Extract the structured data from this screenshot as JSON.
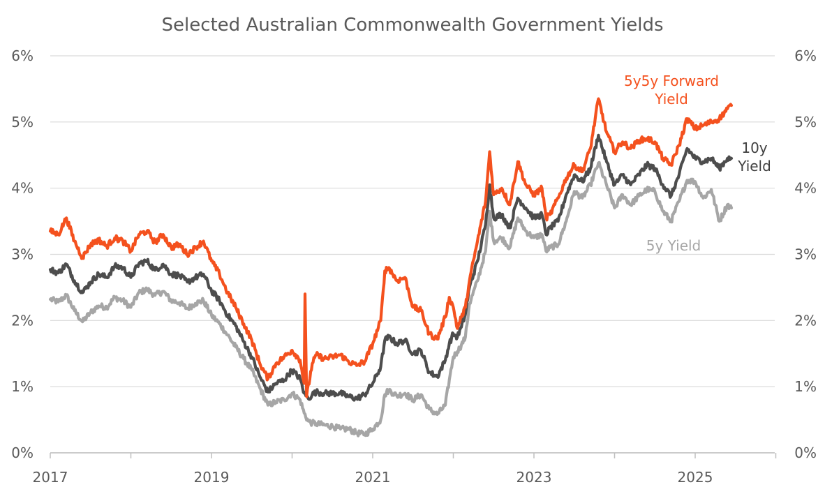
{
  "chart_data": {
    "type": "line",
    "title": "Selected Australian Commonwealth Government Yields",
    "xlabel": "",
    "ylabel": "",
    "x_ticks": [
      "2017",
      "2019",
      "2021",
      "2023",
      "2025"
    ],
    "y_ticks": [
      "0%",
      "1%",
      "2%",
      "3%",
      "4%",
      "5%",
      "6%"
    ],
    "x_range": [
      2017.0,
      2026.0
    ],
    "ylim": [
      0,
      6
    ],
    "grid": "horizontal",
    "legend": "inline labels at right",
    "x_unit": "year (decimal)",
    "y_unit": "percent",
    "series": [
      {
        "name": "5y Yield",
        "label_lines": [
          "5y Yield"
        ],
        "color": "#A6A6A6",
        "points": [
          [
            2017.0,
            2.32
          ],
          [
            2017.1,
            2.28
          ],
          [
            2017.2,
            2.38
          ],
          [
            2017.3,
            2.15
          ],
          [
            2017.4,
            1.98
          ],
          [
            2017.5,
            2.12
          ],
          [
            2017.6,
            2.22
          ],
          [
            2017.7,
            2.2
          ],
          [
            2017.8,
            2.35
          ],
          [
            2017.9,
            2.3
          ],
          [
            2018.0,
            2.2
          ],
          [
            2018.1,
            2.42
          ],
          [
            2018.2,
            2.47
          ],
          [
            2018.3,
            2.38
          ],
          [
            2018.4,
            2.44
          ],
          [
            2018.5,
            2.3
          ],
          [
            2018.6,
            2.27
          ],
          [
            2018.7,
            2.18
          ],
          [
            2018.8,
            2.26
          ],
          [
            2018.9,
            2.3
          ],
          [
            2019.0,
            2.08
          ],
          [
            2019.1,
            1.95
          ],
          [
            2019.2,
            1.78
          ],
          [
            2019.3,
            1.6
          ],
          [
            2019.4,
            1.42
          ],
          [
            2019.5,
            1.25
          ],
          [
            2019.6,
            0.98
          ],
          [
            2019.7,
            0.72
          ],
          [
            2019.8,
            0.77
          ],
          [
            2019.9,
            0.8
          ],
          [
            2020.0,
            0.9
          ],
          [
            2020.1,
            0.8
          ],
          [
            2020.15,
            0.6
          ],
          [
            2020.2,
            0.48
          ],
          [
            2020.25,
            0.45
          ],
          [
            2020.3,
            0.44
          ],
          [
            2020.4,
            0.42
          ],
          [
            2020.5,
            0.4
          ],
          [
            2020.6,
            0.36
          ],
          [
            2020.7,
            0.36
          ],
          [
            2020.8,
            0.3
          ],
          [
            2020.9,
            0.28
          ],
          [
            2021.0,
            0.36
          ],
          [
            2021.1,
            0.5
          ],
          [
            2021.15,
            0.88
          ],
          [
            2021.2,
            0.95
          ],
          [
            2021.3,
            0.86
          ],
          [
            2021.4,
            0.9
          ],
          [
            2021.5,
            0.8
          ],
          [
            2021.6,
            0.88
          ],
          [
            2021.7,
            0.66
          ],
          [
            2021.8,
            0.58
          ],
          [
            2021.9,
            0.72
          ],
          [
            2021.95,
            1.1
          ],
          [
            2022.0,
            1.45
          ],
          [
            2022.05,
            1.53
          ],
          [
            2022.1,
            1.63
          ],
          [
            2022.15,
            1.75
          ],
          [
            2022.2,
            2.25
          ],
          [
            2022.3,
            2.6
          ],
          [
            2022.4,
            3.05
          ],
          [
            2022.45,
            3.65
          ],
          [
            2022.5,
            3.2
          ],
          [
            2022.6,
            3.25
          ],
          [
            2022.7,
            3.1
          ],
          [
            2022.8,
            3.55
          ],
          [
            2022.9,
            3.35
          ],
          [
            2023.0,
            3.25
          ],
          [
            2023.1,
            3.3
          ],
          [
            2023.15,
            3.05
          ],
          [
            2023.2,
            3.1
          ],
          [
            2023.3,
            3.15
          ],
          [
            2023.4,
            3.5
          ],
          [
            2023.5,
            3.95
          ],
          [
            2023.6,
            3.85
          ],
          [
            2023.7,
            4.05
          ],
          [
            2023.8,
            4.38
          ],
          [
            2023.9,
            4.05
          ],
          [
            2024.0,
            3.7
          ],
          [
            2024.1,
            3.9
          ],
          [
            2024.2,
            3.75
          ],
          [
            2024.3,
            3.88
          ],
          [
            2024.4,
            3.98
          ],
          [
            2024.5,
            3.95
          ],
          [
            2024.6,
            3.65
          ],
          [
            2024.7,
            3.5
          ],
          [
            2024.8,
            3.8
          ],
          [
            2024.9,
            4.12
          ],
          [
            2025.0,
            4.1
          ],
          [
            2025.1,
            3.85
          ],
          [
            2025.2,
            3.98
          ],
          [
            2025.3,
            3.5
          ],
          [
            2025.4,
            3.75
          ],
          [
            2025.45,
            3.7
          ]
        ]
      },
      {
        "name": "10y Yield",
        "label_lines": [
          "10y",
          "Yield"
        ],
        "color": "#4D4D4D",
        "points": [
          [
            2017.0,
            2.77
          ],
          [
            2017.1,
            2.72
          ],
          [
            2017.2,
            2.85
          ],
          [
            2017.3,
            2.6
          ],
          [
            2017.4,
            2.42
          ],
          [
            2017.5,
            2.58
          ],
          [
            2017.6,
            2.7
          ],
          [
            2017.7,
            2.65
          ],
          [
            2017.8,
            2.82
          ],
          [
            2017.9,
            2.8
          ],
          [
            2018.0,
            2.65
          ],
          [
            2018.1,
            2.86
          ],
          [
            2018.2,
            2.9
          ],
          [
            2018.3,
            2.76
          ],
          [
            2018.4,
            2.85
          ],
          [
            2018.5,
            2.7
          ],
          [
            2018.6,
            2.68
          ],
          [
            2018.7,
            2.58
          ],
          [
            2018.8,
            2.65
          ],
          [
            2018.9,
            2.7
          ],
          [
            2019.0,
            2.45
          ],
          [
            2019.1,
            2.3
          ],
          [
            2019.2,
            2.08
          ],
          [
            2019.3,
            1.92
          ],
          [
            2019.4,
            1.68
          ],
          [
            2019.5,
            1.45
          ],
          [
            2019.6,
            1.15
          ],
          [
            2019.7,
            0.92
          ],
          [
            2019.8,
            1.05
          ],
          [
            2019.9,
            1.1
          ],
          [
            2020.0,
            1.25
          ],
          [
            2020.1,
            1.12
          ],
          [
            2020.15,
            0.9
          ],
          [
            2020.2,
            0.82
          ],
          [
            2020.25,
            0.88
          ],
          [
            2020.3,
            0.92
          ],
          [
            2020.4,
            0.9
          ],
          [
            2020.5,
            0.9
          ],
          [
            2020.6,
            0.9
          ],
          [
            2020.7,
            0.85
          ],
          [
            2020.8,
            0.82
          ],
          [
            2020.9,
            0.88
          ],
          [
            2021.0,
            1.05
          ],
          [
            2021.1,
            1.3
          ],
          [
            2021.15,
            1.7
          ],
          [
            2021.2,
            1.75
          ],
          [
            2021.3,
            1.65
          ],
          [
            2021.4,
            1.7
          ],
          [
            2021.5,
            1.5
          ],
          [
            2021.6,
            1.55
          ],
          [
            2021.7,
            1.22
          ],
          [
            2021.8,
            1.15
          ],
          [
            2021.9,
            1.4
          ],
          [
            2021.95,
            1.65
          ],
          [
            2022.0,
            1.8
          ],
          [
            2022.05,
            1.75
          ],
          [
            2022.1,
            1.9
          ],
          [
            2022.15,
            2.1
          ],
          [
            2022.2,
            2.5
          ],
          [
            2022.3,
            2.9
          ],
          [
            2022.4,
            3.45
          ],
          [
            2022.45,
            4.05
          ],
          [
            2022.5,
            3.55
          ],
          [
            2022.6,
            3.6
          ],
          [
            2022.7,
            3.4
          ],
          [
            2022.8,
            3.85
          ],
          [
            2022.9,
            3.7
          ],
          [
            2023.0,
            3.55
          ],
          [
            2023.1,
            3.6
          ],
          [
            2023.15,
            3.3
          ],
          [
            2023.2,
            3.4
          ],
          [
            2023.3,
            3.5
          ],
          [
            2023.4,
            3.9
          ],
          [
            2023.5,
            4.2
          ],
          [
            2023.6,
            4.1
          ],
          [
            2023.7,
            4.3
          ],
          [
            2023.8,
            4.8
          ],
          [
            2023.9,
            4.4
          ],
          [
            2024.0,
            4.05
          ],
          [
            2024.1,
            4.2
          ],
          [
            2024.2,
            4.05
          ],
          [
            2024.3,
            4.2
          ],
          [
            2024.4,
            4.35
          ],
          [
            2024.5,
            4.3
          ],
          [
            2024.6,
            4.05
          ],
          [
            2024.7,
            3.88
          ],
          [
            2024.8,
            4.2
          ],
          [
            2024.9,
            4.6
          ],
          [
            2025.0,
            4.45
          ],
          [
            2025.1,
            4.4
          ],
          [
            2025.2,
            4.45
          ],
          [
            2025.3,
            4.3
          ],
          [
            2025.4,
            4.45
          ],
          [
            2025.45,
            4.45
          ]
        ]
      },
      {
        "name": "5y5y Forward Yield",
        "label_lines": [
          "5y5y Forward",
          "Yield"
        ],
        "color": "#F4511E",
        "points": [
          [
            2017.0,
            3.35
          ],
          [
            2017.1,
            3.3
          ],
          [
            2017.2,
            3.55
          ],
          [
            2017.3,
            3.2
          ],
          [
            2017.4,
            2.95
          ],
          [
            2017.5,
            3.15
          ],
          [
            2017.6,
            3.22
          ],
          [
            2017.7,
            3.12
          ],
          [
            2017.8,
            3.25
          ],
          [
            2017.9,
            3.2
          ],
          [
            2018.0,
            3.05
          ],
          [
            2018.1,
            3.3
          ],
          [
            2018.2,
            3.35
          ],
          [
            2018.3,
            3.18
          ],
          [
            2018.4,
            3.3
          ],
          [
            2018.5,
            3.1
          ],
          [
            2018.6,
            3.15
          ],
          [
            2018.7,
            3.0
          ],
          [
            2018.8,
            3.1
          ],
          [
            2018.9,
            3.2
          ],
          [
            2019.0,
            2.9
          ],
          [
            2019.1,
            2.7
          ],
          [
            2019.2,
            2.42
          ],
          [
            2019.3,
            2.2
          ],
          [
            2019.4,
            1.95
          ],
          [
            2019.5,
            1.7
          ],
          [
            2019.6,
            1.35
          ],
          [
            2019.7,
            1.12
          ],
          [
            2019.8,
            1.35
          ],
          [
            2019.9,
            1.45
          ],
          [
            2020.0,
            1.55
          ],
          [
            2020.1,
            1.4
          ],
          [
            2020.15,
            1.05
          ],
          [
            2020.16,
            2.4
          ],
          [
            2020.18,
            0.85
          ],
          [
            2020.25,
            1.35
          ],
          [
            2020.3,
            1.48
          ],
          [
            2020.4,
            1.42
          ],
          [
            2020.5,
            1.45
          ],
          [
            2020.6,
            1.48
          ],
          [
            2020.7,
            1.38
          ],
          [
            2020.8,
            1.32
          ],
          [
            2020.9,
            1.38
          ],
          [
            2021.0,
            1.65
          ],
          [
            2021.1,
            2.0
          ],
          [
            2021.15,
            2.75
          ],
          [
            2021.2,
            2.8
          ],
          [
            2021.3,
            2.6
          ],
          [
            2021.4,
            2.65
          ],
          [
            2021.5,
            2.2
          ],
          [
            2021.6,
            2.15
          ],
          [
            2021.7,
            1.8
          ],
          [
            2021.8,
            1.72
          ],
          [
            2021.9,
            2.05
          ],
          [
            2021.95,
            2.35
          ],
          [
            2022.0,
            2.2
          ],
          [
            2022.05,
            1.88
          ],
          [
            2022.1,
            2.05
          ],
          [
            2022.15,
            2.2
          ],
          [
            2022.2,
            2.6
          ],
          [
            2022.3,
            3.2
          ],
          [
            2022.4,
            3.8
          ],
          [
            2022.45,
            4.55
          ],
          [
            2022.5,
            3.9
          ],
          [
            2022.6,
            4.0
          ],
          [
            2022.7,
            3.75
          ],
          [
            2022.8,
            4.4
          ],
          [
            2022.9,
            4.05
          ],
          [
            2023.0,
            3.9
          ],
          [
            2023.1,
            4.0
          ],
          [
            2023.15,
            3.55
          ],
          [
            2023.2,
            3.6
          ],
          [
            2023.3,
            3.85
          ],
          [
            2023.4,
            4.15
          ],
          [
            2023.5,
            4.35
          ],
          [
            2023.6,
            4.25
          ],
          [
            2023.7,
            4.6
          ],
          [
            2023.8,
            5.35
          ],
          [
            2023.9,
            4.85
          ],
          [
            2024.0,
            4.55
          ],
          [
            2024.1,
            4.7
          ],
          [
            2024.2,
            4.6
          ],
          [
            2024.3,
            4.72
          ],
          [
            2024.4,
            4.75
          ],
          [
            2024.5,
            4.7
          ],
          [
            2024.6,
            4.45
          ],
          [
            2024.7,
            4.35
          ],
          [
            2024.8,
            4.65
          ],
          [
            2024.9,
            5.05
          ],
          [
            2025.0,
            4.9
          ],
          [
            2025.1,
            4.95
          ],
          [
            2025.2,
            5.0
          ],
          [
            2025.3,
            5.05
          ],
          [
            2025.4,
            5.2
          ],
          [
            2025.45,
            5.25
          ]
        ]
      }
    ]
  }
}
